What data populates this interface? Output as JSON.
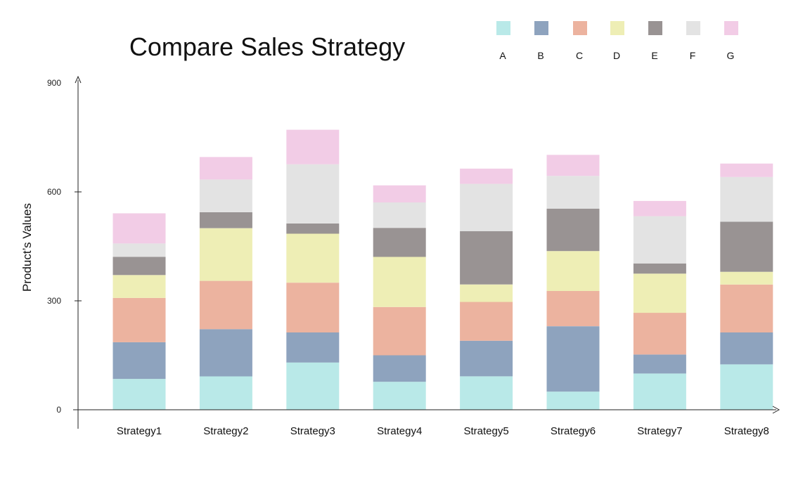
{
  "chart_data": {
    "type": "bar",
    "stacked": true,
    "title": "Compare Sales Strategy",
    "xlabel": "",
    "ylabel": "Product’s Values",
    "ylim": [
      0,
      900
    ],
    "yticks": [
      0,
      300,
      600,
      900
    ],
    "grid": false,
    "legend_position": "top-right",
    "categories": [
      "Strategy1",
      "Strategy2",
      "Strategy3",
      "Strategy4",
      "Strategy5",
      "Strategy6",
      "Strategy7",
      "Strategy8"
    ],
    "series": [
      {
        "name": "A",
        "color": "#b9e9e8",
        "values": [
          85,
          92,
          130,
          77,
          92,
          50,
          100,
          125
        ]
      },
      {
        "name": "B",
        "color": "#8ea3be",
        "values": [
          101,
          130,
          83,
          73,
          98,
          180,
          52,
          88
        ]
      },
      {
        "name": "C",
        "color": "#ecb39f",
        "values": [
          122,
          133,
          137,
          133,
          107,
          97,
          115,
          132
        ]
      },
      {
        "name": "D",
        "color": "#eeeeb5",
        "values": [
          63,
          145,
          135,
          138,
          48,
          110,
          108,
          35
        ]
      },
      {
        "name": "E",
        "color": "#999393",
        "values": [
          50,
          44,
          28,
          80,
          147,
          117,
          28,
          138
        ]
      },
      {
        "name": "F",
        "color": "#e3e3e3",
        "values": [
          37,
          90,
          163,
          70,
          130,
          90,
          130,
          123
        ]
      },
      {
        "name": "G",
        "color": "#f2cce6",
        "values": [
          83,
          62,
          95,
          47,
          42,
          58,
          42,
          37
        ]
      }
    ]
  }
}
